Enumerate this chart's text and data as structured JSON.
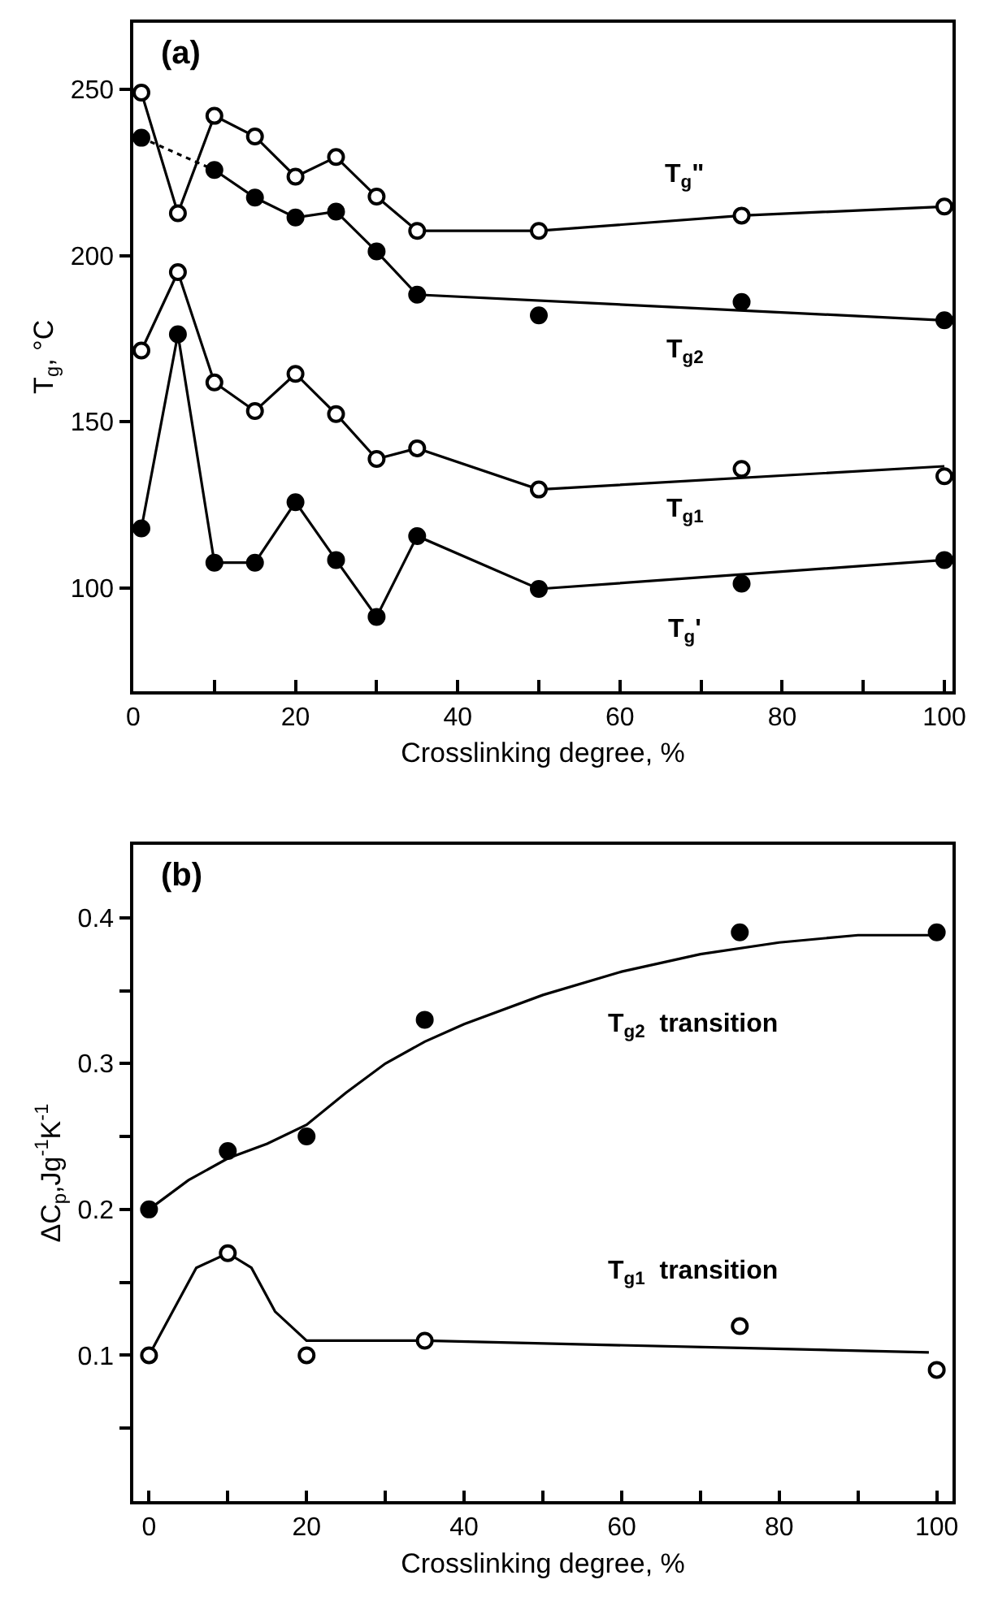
{
  "chart_data": [
    {
      "type": "scatter",
      "xlabel": "Crosslinking degree, %",
      "ylabel": "T$_{g}$, °C",
      "xlim": [
        0,
        101
      ],
      "ylim": [
        69,
        270
      ],
      "xticks": [
        0,
        {
          "value": 10,
          "label": null
        },
        20,
        {
          "value": 30,
          "label": null
        },
        40,
        {
          "value": 50,
          "label": null
        },
        60,
        {
          "value": 70,
          "label": null
        },
        80,
        {
          "value": 90,
          "label": null
        },
        100
      ],
      "yticks": [
        100,
        150,
        200,
        250
      ],
      "series": [
        {
          "type": "line",
          "marker": "none",
          "color": "#000000",
          "x": [
            1,
            5.5,
            10,
            15,
            20,
            25,
            30,
            35,
            50,
            75,
            100
          ],
          "values": [
            249,
            212.7,
            242,
            235.8,
            223.7,
            229.6,
            217.7,
            207.4,
            207.4,
            212,
            214.7
          ]
        },
        {
          "type": "line",
          "marker": "none",
          "color": "#000000",
          "line_style": "dotted",
          "x": [
            1,
            10
          ],
          "values": [
            235.4,
            225.7
          ]
        },
        {
          "type": "line",
          "marker": "none",
          "color": "#000000",
          "x": [
            10,
            15,
            20,
            25,
            30,
            35,
            100
          ],
          "values": [
            225.7,
            217.4,
            211.4,
            213.2,
            201.2,
            188.2,
            180.5
          ]
        },
        {
          "type": "line",
          "marker": "none",
          "color": "#000000",
          "x": [
            1,
            5.5,
            10,
            15,
            20,
            25,
            30,
            35,
            50,
            100
          ],
          "values": [
            171.4,
            195,
            161.8,
            153.2,
            164.4,
            152.3,
            138.8,
            142,
            129.6,
            136.6
          ]
        },
        {
          "type": "line",
          "marker": "none",
          "color": "#000000",
          "x": [
            1,
            5.5,
            10,
            15,
            20,
            25,
            30,
            35,
            50,
            100
          ],
          "values": [
            117.9,
            176.3,
            107.6,
            107.6,
            125.8,
            108.4,
            91.3,
            115.6,
            99.7,
            108.4
          ]
        },
        {
          "marker": "circle",
          "color": "#ffffff",
          "x": [
            1,
            5.5,
            10,
            15,
            20,
            25,
            30,
            35,
            50,
            75,
            100
          ],
          "values": [
            249,
            212.7,
            242,
            235.8,
            223.7,
            229.6,
            217.7,
            207.4,
            207.4,
            212,
            214.7
          ]
        },
        {
          "marker": "circle",
          "color": "#000000",
          "x": [
            1,
            10,
            15,
            20,
            25,
            30,
            35,
            50,
            75,
            100
          ],
          "values": [
            235.4,
            225.7,
            217.4,
            211.4,
            213.2,
            201.2,
            188.2,
            182,
            186,
            180.5
          ]
        },
        {
          "marker": "circle",
          "color": "#ffffff",
          "x": [
            1,
            5.5,
            10,
            15,
            20,
            25,
            30,
            35,
            50,
            75,
            100
          ],
          "values": [
            171.4,
            195,
            161.8,
            153.2,
            164.4,
            152.3,
            138.8,
            142,
            129.6,
            135.8,
            133.6
          ]
        },
        {
          "marker": "circle",
          "color": "#000000",
          "x": [
            1,
            5.5,
            10,
            15,
            20,
            25,
            30,
            35,
            50,
            75,
            100
          ],
          "values": [
            117.9,
            176.3,
            107.6,
            107.6,
            125.8,
            108.4,
            91.3,
            115.6,
            99.7,
            101.3,
            108.4
          ]
        }
      ],
      "annotations": [
        "(a)",
        "T$_{g}$\"",
        "T$_{g2}$",
        "T$_{g1}$",
        "T$_{g}$'"
      ]
    },
    {
      "type": "scatter",
      "xlabel": "Crosslinking degree, %",
      "ylabel": "ΔC$_{p}$,Jg$^{-1}$K$^{-1}$",
      "xlim": [
        -2,
        102
      ],
      "ylim": [
        0,
        0.45
      ],
      "xticks": [
        0,
        {
          "value": 10,
          "label": null
        },
        20,
        {
          "value": 30,
          "label": null
        },
        40,
        {
          "value": 50,
          "label": null
        },
        60,
        {
          "value": 70,
          "label": null
        },
        80,
        {
          "value": 90,
          "label": null
        },
        100
      ],
      "yticks": [
        {
          "value": 0.05,
          "label": null
        },
        0.1,
        {
          "value": 0.15,
          "label": null
        },
        0.2,
        {
          "value": 0.25,
          "label": null
        },
        0.3,
        {
          "value": 0.35,
          "label": null
        },
        0.4
      ],
      "series": [
        {
          "type": "line",
          "marker": "none",
          "color": "#000000",
          "x": [
            0,
            5,
            10,
            15,
            20,
            25,
            30,
            35,
            40,
            50,
            60,
            70,
            80,
            90,
            100
          ],
          "values": [
            0.2,
            0.22,
            0.235,
            0.245,
            0.258,
            0.28,
            0.3,
            0.315,
            0.327,
            0.347,
            0.363,
            0.375,
            0.383,
            0.388,
            0.388
          ]
        },
        {
          "type": "line",
          "marker": "none",
          "color": "#000000",
          "x": [
            0,
            3,
            6,
            10,
            13,
            16,
            20,
            35,
            75,
            99
          ],
          "values": [
            0.1,
            0.13,
            0.16,
            0.17,
            0.16,
            0.13,
            0.11,
            0.11,
            0.105,
            0.102
          ]
        },
        {
          "marker": "circle",
          "color": "#000000",
          "x": [
            0,
            10,
            20,
            35,
            75,
            100
          ],
          "values": [
            0.2,
            0.24,
            0.25,
            0.33,
            0.39,
            0.39
          ]
        },
        {
          "marker": "circle",
          "color": "#ffffff",
          "x": [
            0,
            10,
            20,
            35,
            75,
            100
          ],
          "values": [
            0.1,
            0.17,
            0.1,
            0.11,
            0.12,
            0.09
          ]
        }
      ],
      "annotations": [
        "(b)",
        "T$_{g2}$  transition",
        "T$_{g1}$  transition"
      ]
    }
  ]
}
